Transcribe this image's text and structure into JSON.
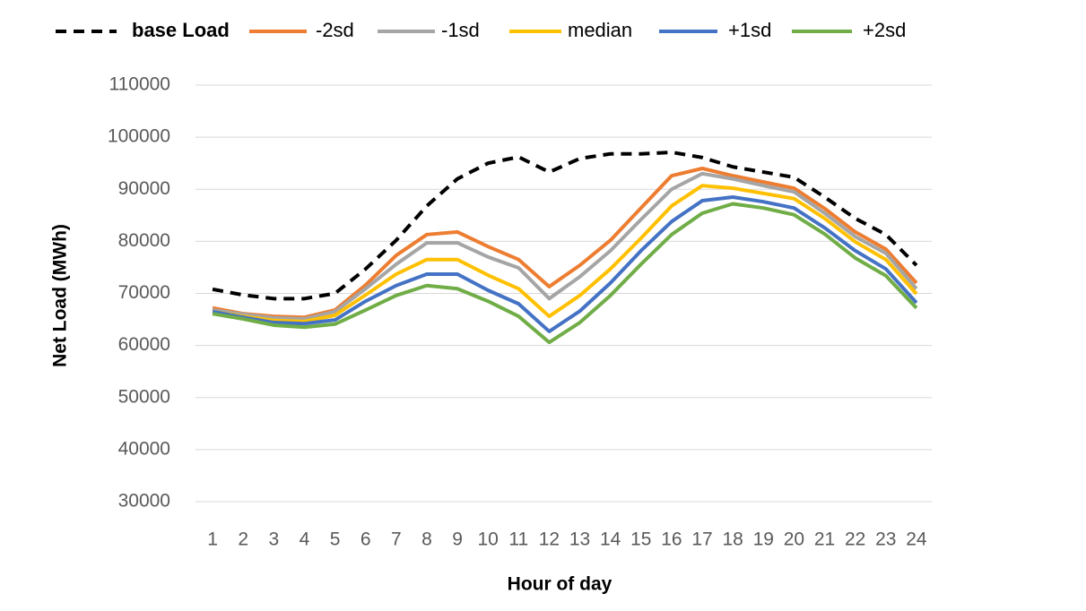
{
  "chart_data": {
    "type": "line",
    "x_label": "Hour of day",
    "y_label": "Net Load (MWh)",
    "categories": [
      "1",
      "2",
      "3",
      "4",
      "5",
      "6",
      "7",
      "8",
      "9",
      "10",
      "11",
      "12",
      "13",
      "14",
      "15",
      "16",
      "17",
      "18",
      "19",
      "20",
      "21",
      "22",
      "23",
      "24"
    ],
    "ylim": [
      30000,
      110000
    ],
    "yticks": [
      30000,
      40000,
      50000,
      60000,
      70000,
      80000,
      90000,
      100000,
      110000
    ],
    "grid": true,
    "legend": "top",
    "series": [
      {
        "name": "base Load",
        "color": "#000000",
        "dashed": true,
        "values": [
          70800,
          69700,
          69000,
          69000,
          70000,
          74700,
          80200,
          86800,
          92000,
          95000,
          96200,
          93300,
          95900,
          96800,
          96800,
          97100,
          96100,
          94300,
          93300,
          92300,
          88500,
          84400,
          81300,
          75400
        ]
      },
      {
        "name": "-2sd",
        "color": "#ed7d31",
        "values": [
          67200,
          66100,
          65600,
          65400,
          66800,
          71600,
          77300,
          81300,
          81800,
          79000,
          76500,
          71300,
          75400,
          80200,
          86400,
          92600,
          94000,
          92600,
          91400,
          90200,
          86300,
          81800,
          78500,
          72000
        ]
      },
      {
        "name": "-1sd",
        "color": "#a5a5a5",
        "values": [
          66800,
          66000,
          65300,
          65100,
          66500,
          70900,
          75600,
          79700,
          79700,
          77000,
          74900,
          69000,
          73200,
          78200,
          84200,
          90000,
          93000,
          92000,
          90700,
          89500,
          85400,
          80900,
          77700,
          70900
        ]
      },
      {
        "name": "median",
        "color": "#ffc000",
        "values": [
          66500,
          65600,
          64800,
          64600,
          65800,
          69700,
          73700,
          76500,
          76500,
          73500,
          70900,
          65600,
          69600,
          74700,
          80600,
          86800,
          90700,
          90200,
          89200,
          88200,
          84400,
          79900,
          76500,
          69900
        ]
      },
      {
        "name": "+1sd",
        "color": "#4472c4",
        "values": [
          66500,
          65400,
          64400,
          64200,
          64900,
          68500,
          71500,
          73700,
          73700,
          70600,
          68000,
          62700,
          66600,
          72000,
          78200,
          83800,
          87800,
          88500,
          87600,
          86400,
          82600,
          78200,
          74700,
          68200
        ]
      },
      {
        "name": "+2sd",
        "color": "#70ad47",
        "values": [
          66100,
          65100,
          63900,
          63500,
          64100,
          66800,
          69600,
          71500,
          70900,
          68500,
          65600,
          60600,
          64400,
          69600,
          75600,
          81300,
          85400,
          87200,
          86400,
          85100,
          81400,
          76800,
          73400,
          67200
        ]
      }
    ]
  }
}
